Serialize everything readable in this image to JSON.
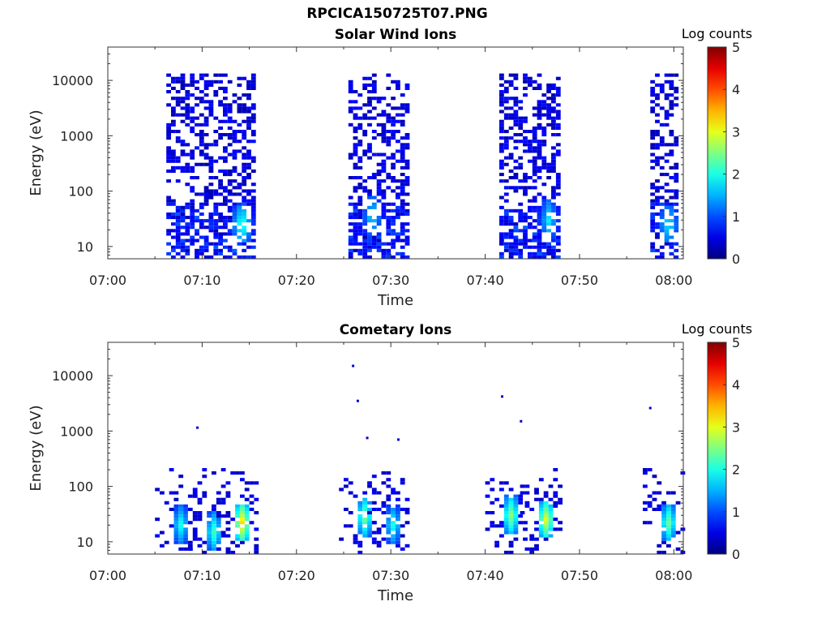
{
  "figure": {
    "title": "RPCICA150725T07.PNG"
  },
  "chart_data": [
    {
      "type": "heatmap",
      "title": "Solar Wind Ions",
      "xlabel": "Time",
      "ylabel": "Energy (eV)",
      "x_scale": "time",
      "y_scale": "log",
      "xlim": [
        "07:00",
        "08:01"
      ],
      "ylim": [
        6,
        40000
      ],
      "x_ticks": [
        "07:00",
        "07:10",
        "07:20",
        "07:30",
        "07:40",
        "07:50",
        "08:00"
      ],
      "y_ticks": [
        "10",
        "100",
        "1000",
        "10000"
      ],
      "colorbar": {
        "label": "Log counts",
        "min": 0,
        "max": 5,
        "ticks": [
          "0",
          "1",
          "2",
          "3",
          "4",
          "5"
        ],
        "colormap": "jet"
      },
      "bursts": [
        {
          "start": "07:06.2",
          "end": "07:15.6",
          "max_energy_eV": 12000,
          "peak_log_counts": 2.2,
          "peak_time": "07:14.0",
          "peak_energy_eV": 25
        },
        {
          "start": "07:25.5",
          "end": "07:31.8",
          "max_energy_eV": 12000,
          "peak_log_counts": 1.8,
          "peak_time": "07:27.8",
          "peak_energy_eV": 35
        },
        {
          "start": "07:41.5",
          "end": "07:47.9",
          "max_energy_eV": 12000,
          "peak_log_counts": 1.8,
          "peak_time": "07:46.5",
          "peak_energy_eV": 30
        },
        {
          "start": "07:57.5",
          "end": "08:00.5",
          "max_energy_eV": 12000,
          "peak_log_counts": 1.9,
          "peak_time": "07:59.2",
          "peak_energy_eV": 25
        }
      ],
      "grid": false
    },
    {
      "type": "heatmap",
      "title": "Cometary Ions",
      "xlabel": "Time",
      "ylabel": "Energy (eV)",
      "x_scale": "time",
      "y_scale": "log",
      "xlim": [
        "07:00",
        "08:01"
      ],
      "ylim": [
        6,
        40000
      ],
      "x_ticks": [
        "07:00",
        "07:10",
        "07:20",
        "07:30",
        "07:40",
        "07:50",
        "08:00"
      ],
      "y_ticks": [
        "10",
        "100",
        "1000",
        "10000"
      ],
      "colorbar": {
        "label": "Log counts",
        "min": 0,
        "max": 5,
        "ticks": [
          "0",
          "1",
          "2",
          "3",
          "4",
          "5"
        ],
        "colormap": "jet"
      },
      "clusters": [
        {
          "time": "07:07.5",
          "energy_eV": 20,
          "peak_log_counts": 2.0
        },
        {
          "time": "07:11.0",
          "energy_eV": 15,
          "peak_log_counts": 2.2
        },
        {
          "time": "07:14.0",
          "energy_eV": 22,
          "peak_log_counts": 3.3
        },
        {
          "time": "07:27.0",
          "energy_eV": 28,
          "peak_log_counts": 2.5
        },
        {
          "time": "07:30.0",
          "energy_eV": 20,
          "peak_log_counts": 2.0
        },
        {
          "time": "07:42.5",
          "energy_eV": 30,
          "peak_log_counts": 2.6
        },
        {
          "time": "07:46.2",
          "energy_eV": 25,
          "peak_log_counts": 3.0
        },
        {
          "time": "07:59.2",
          "energy_eV": 22,
          "peak_log_counts": 2.4
        }
      ],
      "isolated_points": [
        {
          "time": "07:09.5",
          "energy_eV": 1150
        },
        {
          "time": "07:26.0",
          "energy_eV": 15000
        },
        {
          "time": "07:26.5",
          "energy_eV": 3500
        },
        {
          "time": "07:27.5",
          "energy_eV": 750
        },
        {
          "time": "07:30.8",
          "energy_eV": 700
        },
        {
          "time": "07:41.8",
          "energy_eV": 4200
        },
        {
          "time": "07:43.8",
          "energy_eV": 1500
        },
        {
          "time": "07:57.5",
          "energy_eV": 2600
        }
      ],
      "grid": false
    }
  ]
}
